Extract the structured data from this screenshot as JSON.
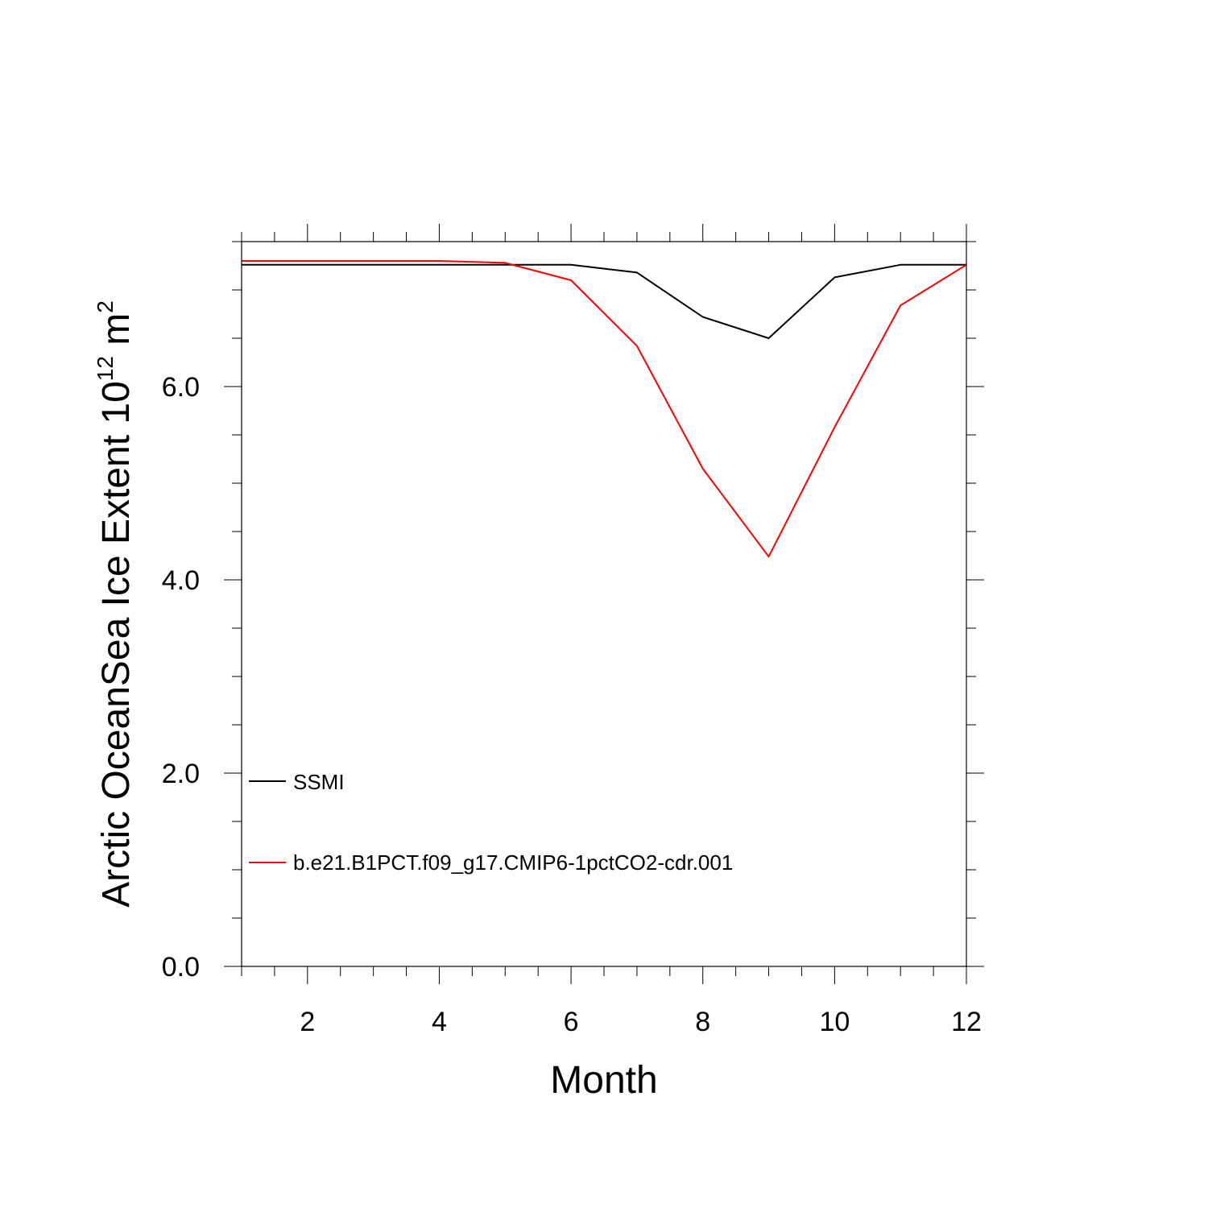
{
  "chart_data": {
    "type": "line",
    "xlabel": "Month",
    "ylabel": {
      "text": "Arctic OceanSea Ice Extent 10",
      "exponent": "12",
      "unit": "m",
      "unit_exponent": "2"
    },
    "xlim": [
      1,
      12
    ],
    "ylim": [
      0,
      7.5
    ],
    "x_ticks": [
      2,
      4,
      6,
      8,
      10,
      12
    ],
    "x_tick_labels": [
      "2",
      "4",
      "6",
      "8",
      "10",
      "12"
    ],
    "y_ticks": [
      0,
      2,
      4,
      6
    ],
    "y_tick_labels": [
      "0.0",
      "2.0",
      "4.0",
      "6.0"
    ],
    "x_minor_step": 0.5,
    "y_minor_step": 0.5,
    "grid": false,
    "legend_position": "bottom-left",
    "series": [
      {
        "name": "SSMI",
        "color": "#000000",
        "x": [
          1,
          2,
          3,
          4,
          5,
          6,
          7,
          8,
          9,
          10,
          11,
          12
        ],
        "y": [
          7.26,
          7.26,
          7.26,
          7.26,
          7.26,
          7.26,
          7.18,
          6.72,
          6.5,
          7.13,
          7.26,
          7.26
        ]
      },
      {
        "name": "b.e21.B1PCT.f09_g17.CMIP6-1pctCO2-cdr.001",
        "color": "#ff0000",
        "x": [
          1,
          2,
          3,
          4,
          5,
          6,
          7,
          8,
          9,
          10,
          11,
          12
        ],
        "y": [
          7.3,
          7.3,
          7.3,
          7.3,
          7.28,
          7.1,
          6.42,
          5.15,
          4.24,
          5.58,
          6.84,
          7.26
        ]
      }
    ]
  }
}
